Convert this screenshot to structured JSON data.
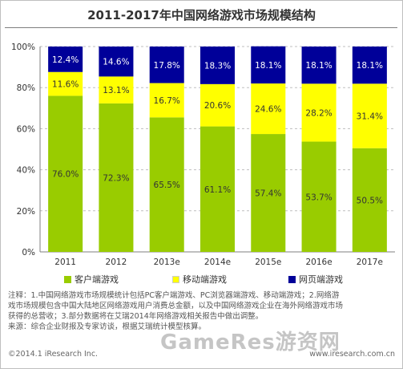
{
  "title": "2011-2017年中国网络游戏市场规模结构",
  "chart_data": {
    "type": "bar",
    "stacked": true,
    "categories": [
      "2011",
      "2012",
      "2013e",
      "2014e",
      "2015e",
      "2016e",
      "2017e"
    ],
    "series": [
      {
        "name": "客户端游戏",
        "color": "#99cc00",
        "values": [
          76.0,
          72.3,
          65.5,
          61.1,
          57.4,
          53.7,
          50.5
        ],
        "labels": [
          "76.0%",
          "72.3%",
          "65.5%",
          "61.1%",
          "57.4%",
          "53.7%",
          "50.5%"
        ]
      },
      {
        "name": "移动端游戏",
        "color": "#ffff00",
        "values": [
          11.6,
          13.1,
          16.7,
          20.6,
          24.6,
          28.2,
          31.4
        ],
        "labels": [
          "11.6%",
          "13.1%",
          "16.7%",
          "20.6%",
          "24.6%",
          "28.2%",
          "31.4%"
        ]
      },
      {
        "name": "网页端游戏",
        "color": "#000099",
        "values": [
          12.4,
          14.6,
          17.8,
          18.3,
          18.1,
          18.1,
          18.1
        ],
        "labels": [
          "12.4%",
          "14.6%",
          "17.8%",
          "18.3%",
          "18.1%",
          "18.1%",
          "18.1%"
        ]
      }
    ],
    "y_ticks": [
      "0%",
      "20%",
      "40%",
      "60%",
      "80%",
      "100%"
    ],
    "ylim": [
      0,
      100
    ],
    "grid": "horizontal dashed",
    "legend_position": "bottom"
  },
  "notes": {
    "line1": "注释：1.中国网络游戏市场规模统计包括PC客户端游戏、PC浏览器端游戏、移动端游戏；2.网络游",
    "line2": "戏市场规模包含中国大陆地区网络游戏用户消费总金额，以及中国网络游戏企业在海外网络游戏市场",
    "line3": "获得的总营收；3.部分数据将在艾瑞2014年网络游戏相关报告中做出调整。",
    "line4": "来源：综合企业财报及专家访谈，根据艾瑞统计模型核算。"
  },
  "footer": {
    "copyright": "©2014.1 iResearch Inc.",
    "site": "www.iresearch.com.cn",
    "watermark": "GameRes游资网"
  }
}
